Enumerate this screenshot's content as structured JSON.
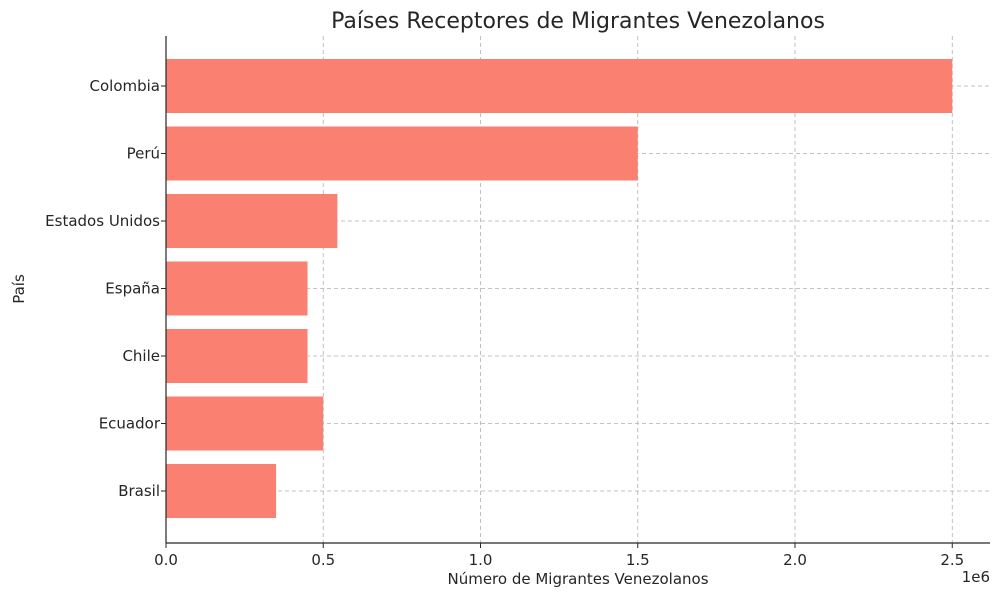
{
  "chart_data": {
    "type": "bar",
    "orientation": "horizontal",
    "title": "Países Receptores de Migrantes Venezolanos",
    "xlabel": "Número de Migrantes Venezolanos",
    "ylabel": "País",
    "x_offset_label": "1e6",
    "categories": [
      "Colombia",
      "Perú",
      "Estados Unidos",
      "España",
      "Chile",
      "Ecuador",
      "Brasil"
    ],
    "values": [
      2500000,
      1500000,
      545000,
      450000,
      450000,
      500000,
      350000
    ],
    "xlim": [
      0,
      2620000
    ],
    "x_ticks": [
      0,
      500000,
      1000000,
      1500000,
      2000000,
      2500000
    ],
    "x_tick_labels": [
      "0.0",
      "0.5",
      "1.0",
      "1.5",
      "2.0",
      "2.5"
    ],
    "bar_color": "#fa8072",
    "grid": true
  }
}
